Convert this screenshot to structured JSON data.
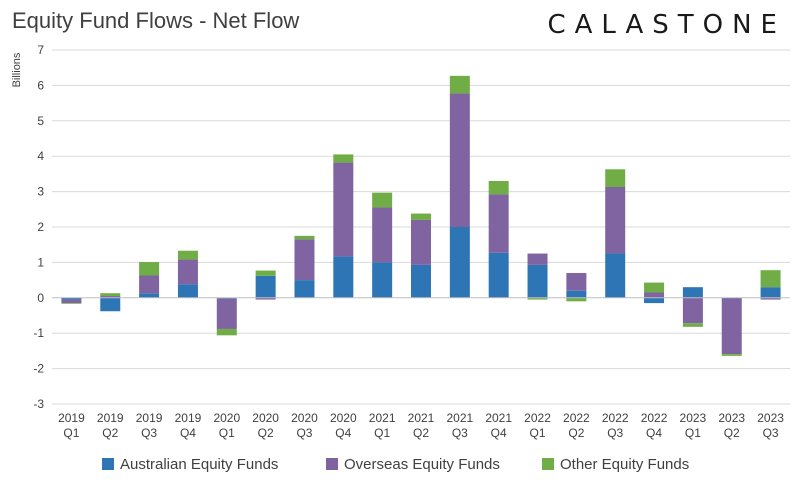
{
  "header": {
    "title": "Equity Fund Flows - Net Flow",
    "logo_text": "CALASTONE"
  },
  "colors": {
    "australian": "#2E75B6",
    "overseas": "#8064A2",
    "other": "#70AD47",
    "axis": "#BFBFBF",
    "grid": "#D9D9D9"
  },
  "chart_data": {
    "type": "bar",
    "stacked": true,
    "ylabel": "Billions",
    "ylim": [
      -3,
      7
    ],
    "yticks": [
      -3,
      -2,
      -1,
      0,
      1,
      2,
      3,
      4,
      5,
      6,
      7
    ],
    "grid": true,
    "legend_position": "bottom",
    "categories": [
      [
        "2019",
        "Q1"
      ],
      [
        "2019",
        "Q2"
      ],
      [
        "2019",
        "Q3"
      ],
      [
        "2019",
        "Q4"
      ],
      [
        "2020",
        "Q1"
      ],
      [
        "2020",
        "Q2"
      ],
      [
        "2020",
        "Q3"
      ],
      [
        "2020",
        "Q4"
      ],
      [
        "2021",
        "Q1"
      ],
      [
        "2021",
        "Q2"
      ],
      [
        "2021",
        "Q3"
      ],
      [
        "2021",
        "Q4"
      ],
      [
        "2022",
        "Q1"
      ],
      [
        "2022",
        "Q2"
      ],
      [
        "2022",
        "Q3"
      ],
      [
        "2022",
        "Q4"
      ],
      [
        "2023",
        "Q1"
      ],
      [
        "2023",
        "Q2"
      ],
      [
        "2023",
        "Q3"
      ]
    ],
    "series": [
      {
        "name": "Australian Equity Funds",
        "color": "#2E75B6",
        "values": [
          -0.05,
          -0.38,
          0.13,
          0.38,
          -0.03,
          0.62,
          0.5,
          1.17,
          1.0,
          0.93,
          2.0,
          1.27,
          0.93,
          0.2,
          1.25,
          -0.15,
          0.3,
          -0.02,
          0.3
        ]
      },
      {
        "name": "Overseas Equity Funds",
        "color": "#8064A2",
        "values": [
          -0.1,
          0.05,
          0.5,
          0.7,
          -0.85,
          -0.05,
          1.15,
          2.65,
          1.55,
          1.27,
          3.77,
          1.65,
          0.32,
          0.5,
          1.88,
          0.15,
          -0.72,
          -1.57,
          -0.05
        ]
      },
      {
        "name": "Other Equity Funds",
        "color": "#70AD47",
        "values": [
          -0.02,
          0.08,
          0.38,
          0.25,
          -0.18,
          0.15,
          0.1,
          0.23,
          0.42,
          0.18,
          0.5,
          0.38,
          -0.05,
          -0.1,
          0.5,
          0.28,
          -0.1,
          -0.05,
          0.48
        ]
      }
    ]
  }
}
